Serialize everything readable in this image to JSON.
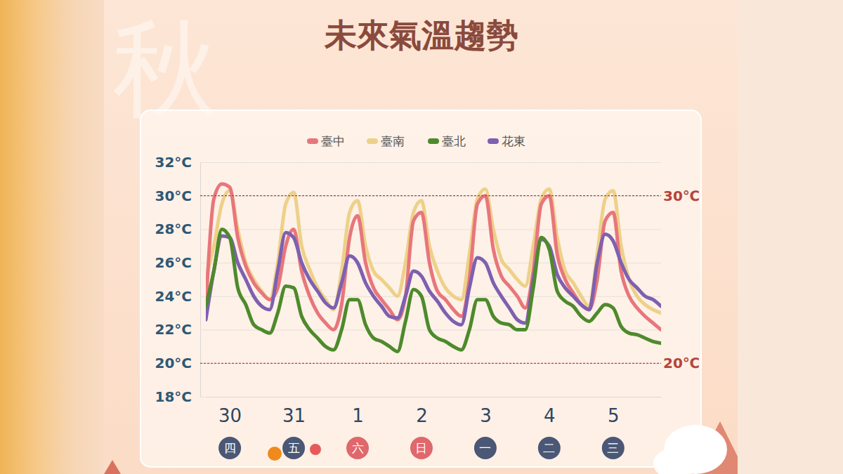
{
  "chart_data": {
    "type": "line",
    "title": "未來氣溫趨勢",
    "background_text": "秋",
    "categories": [
      null,
      null,
      null,
      "30",
      null,
      null,
      null,
      null,
      null,
      null,
      null,
      "31",
      null,
      null,
      null,
      null,
      null,
      null,
      null,
      "1",
      null,
      null,
      null,
      null,
      null,
      null,
      null,
      "2",
      null,
      null,
      null,
      null,
      null,
      null,
      null,
      "3",
      null,
      null,
      null,
      null,
      null,
      null,
      null,
      "4",
      null,
      null,
      null,
      null,
      null,
      null,
      null,
      "5",
      null,
      null,
      null,
      null,
      null,
      null
    ],
    "x_sublabels": {
      "labels": [
        null,
        null,
        null,
        "四",
        null,
        null,
        null,
        null,
        null,
        null,
        null,
        "五",
        null,
        null,
        null,
        null,
        null,
        null,
        null,
        "六",
        null,
        null,
        null,
        null,
        null,
        null,
        null,
        "日",
        null,
        null,
        null,
        null,
        null,
        null,
        null,
        "一",
        null,
        null,
        null,
        null,
        null,
        null,
        null,
        "二",
        null,
        null,
        null,
        null,
        null,
        null,
        null,
        "三",
        null,
        null,
        null,
        null,
        null,
        null
      ],
      "colors": [
        null,
        null,
        null,
        "#4a5775",
        null,
        null,
        null,
        null,
        null,
        null,
        null,
        "#4a5775",
        null,
        null,
        null,
        null,
        null,
        null,
        null,
        "#e0676b",
        null,
        null,
        null,
        null,
        null,
        null,
        null,
        "#e0676b",
        null,
        null,
        null,
        null,
        null,
        null,
        null,
        "#4a5775",
        null,
        null,
        null,
        null,
        null,
        null,
        null,
        "#4a5775",
        null,
        null,
        null,
        null,
        null,
        null,
        null,
        "#4a5775",
        null,
        null,
        null,
        null,
        null,
        null
      ]
    },
    "series": [
      {
        "name": "臺中",
        "color": "#e8767b",
        "values": [
          23.3,
          29.8,
          30.7,
          30.5,
          27.5,
          25.8,
          24.8,
          24.2,
          23.8,
          24.5,
          27.0,
          28.0,
          25.5,
          24.0,
          23.0,
          22.4,
          22.0,
          23.5,
          27.5,
          28.8,
          26.0,
          24.5,
          23.8,
          23.2,
          22.6,
          24.0,
          28.5,
          29.0,
          26.0,
          24.3,
          23.8,
          23.2,
          22.8,
          25.0,
          29.5,
          30.0,
          26.8,
          25.2,
          24.6,
          24.0,
          23.3,
          25.5,
          29.5,
          30.0,
          26.5,
          25.0,
          24.2,
          23.5,
          23.2,
          25.0,
          28.5,
          29.0,
          25.5,
          24.0,
          23.3,
          22.8,
          22.4,
          22.0
        ]
      },
      {
        "name": "臺南",
        "color": "#edd189",
        "values": [
          25.0,
          27.0,
          29.5,
          30.3,
          28.0,
          26.0,
          25.0,
          24.3,
          23.8,
          26.0,
          29.5,
          30.2,
          27.0,
          25.6,
          24.5,
          23.8,
          23.2,
          25.5,
          29.0,
          29.7,
          27.0,
          25.5,
          25.0,
          24.5,
          24.0,
          26.0,
          29.0,
          29.7,
          27.0,
          25.5,
          24.5,
          24.0,
          23.8,
          26.5,
          29.8,
          30.4,
          28.0,
          26.2,
          25.6,
          25.0,
          24.6,
          27.0,
          29.8,
          30.4,
          27.5,
          25.5,
          24.8,
          24.0,
          23.4,
          26.5,
          29.8,
          30.3,
          27.0,
          25.0,
          24.0,
          23.5,
          23.2,
          23.0
        ]
      },
      {
        "name": "臺北",
        "color": "#4e8a2c",
        "values": [
          23.4,
          25.5,
          28.0,
          27.5,
          24.5,
          23.5,
          22.3,
          22.0,
          21.8,
          23.0,
          24.6,
          24.5,
          22.8,
          22.0,
          21.5,
          21.0,
          20.8,
          22.0,
          23.8,
          23.8,
          22.3,
          21.5,
          21.3,
          21.0,
          20.7,
          22.5,
          24.4,
          24.0,
          22.0,
          21.5,
          21.3,
          21.0,
          20.8,
          22.0,
          23.8,
          23.8,
          22.8,
          22.4,
          22.3,
          22.0,
          22.0,
          24.5,
          27.5,
          26.8,
          24.3,
          23.7,
          23.4,
          22.8,
          22.5,
          23.0,
          23.5,
          23.3,
          22.2,
          21.8,
          21.7,
          21.5,
          21.3,
          21.2
        ]
      },
      {
        "name": "花東",
        "color": "#7e60b1",
        "values": [
          22.6,
          25.5,
          27.6,
          27.5,
          26.0,
          25.0,
          24.0,
          23.4,
          23.2,
          25.5,
          27.8,
          27.5,
          26.0,
          25.0,
          24.3,
          23.6,
          23.3,
          24.8,
          26.4,
          26.0,
          24.8,
          24.0,
          23.4,
          22.8,
          22.7,
          24.0,
          25.5,
          25.2,
          24.3,
          23.7,
          23.0,
          22.5,
          22.3,
          24.5,
          26.3,
          26.0,
          24.8,
          24.0,
          23.3,
          22.6,
          22.4,
          25.0,
          27.4,
          27.0,
          25.3,
          24.5,
          24.0,
          23.5,
          23.2,
          26.0,
          27.7,
          27.3,
          26.0,
          25.0,
          24.5,
          24.0,
          23.8,
          23.4
        ]
      }
    ],
    "ylim": [
      18,
      32
    ],
    "yticks": [
      {
        "value": 18,
        "label": "18°C"
      },
      {
        "value": 20,
        "label": "20°C"
      },
      {
        "value": 22,
        "label": "22°C"
      },
      {
        "value": 24,
        "label": "24°C"
      },
      {
        "value": 26,
        "label": "26°C"
      },
      {
        "value": 28,
        "label": "28°C"
      },
      {
        "value": 30,
        "label": "30°C"
      },
      {
        "value": 32,
        "label": "32°C"
      }
    ],
    "annotations": [
      {
        "value": 30,
        "label": "30℃"
      },
      {
        "value": 20,
        "label": "20℃"
      }
    ],
    "grid": true,
    "legend": "top"
  }
}
